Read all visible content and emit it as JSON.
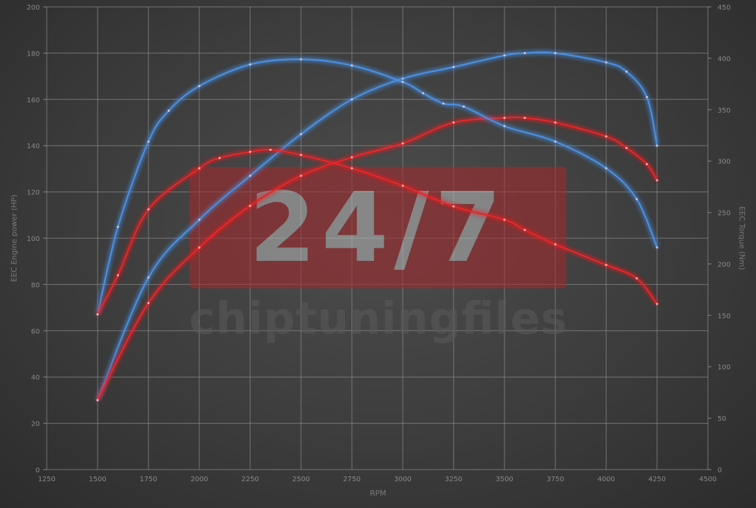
{
  "chart_data": {
    "type": "line",
    "xlabel": "RPM",
    "ylabel": "EEC Engine power (HP)",
    "y2label": "EEC Torque (Nm)",
    "xlim": [
      1250,
      4500
    ],
    "ylim": [
      0,
      200
    ],
    "y2lim": [
      0,
      450
    ],
    "xticks": [
      1250,
      1500,
      1750,
      2000,
      2250,
      2500,
      2750,
      3000,
      3250,
      3500,
      3750,
      4000,
      4250,
      4500
    ],
    "yticks": [
      0,
      20,
      40,
      60,
      80,
      100,
      120,
      140,
      160,
      180,
      200
    ],
    "y2ticks": [
      0,
      50,
      100,
      150,
      200,
      250,
      300,
      350,
      400,
      450
    ],
    "grid": true,
    "colors": {
      "tuned": "#4a90e2",
      "stock": "#e8262b"
    },
    "series": [
      {
        "axis": "left",
        "color": "tuned",
        "x": [
          1500,
          1750,
          2000,
          2250,
          2500,
          2750,
          3000,
          3250,
          3500,
          3600,
          3750,
          4000,
          4100,
          4200,
          4250
        ],
        "values": [
          30,
          83,
          108,
          127,
          145,
          160,
          169,
          174,
          179,
          180,
          180,
          176,
          172,
          161,
          140
        ]
      },
      {
        "axis": "left",
        "color": "stock",
        "x": [
          1500,
          1750,
          2000,
          2250,
          2500,
          2750,
          3000,
          3250,
          3500,
          3600,
          3750,
          4000,
          4100,
          4200,
          4250
        ],
        "values": [
          30,
          72,
          96,
          114,
          127,
          135,
          141,
          150,
          152,
          152,
          150,
          144,
          139,
          132,
          125
        ]
      },
      {
        "axis": "right",
        "color": "tuned",
        "x": [
          1500,
          1600,
          1750,
          1850,
          2000,
          2250,
          2500,
          2750,
          3000,
          3100,
          3200,
          3300,
          3500,
          3750,
          4000,
          4150,
          4250
        ],
        "values": [
          151,
          236,
          319,
          349,
          373,
          394,
          399,
          393,
          377,
          366,
          356,
          353,
          334,
          319,
          293,
          263,
          216
        ]
      },
      {
        "axis": "right",
        "color": "stock",
        "x": [
          1500,
          1600,
          1750,
          2000,
          2100,
          2250,
          2350,
          2500,
          2750,
          3000,
          3250,
          3500,
          3600,
          3750,
          4000,
          4150,
          4250
        ],
        "values": [
          151,
          189,
          253,
          293,
          303,
          309,
          311,
          306,
          293,
          276,
          256,
          243,
          233,
          219,
          199,
          186,
          161
        ]
      }
    ]
  },
  "watermark": {
    "logo": "24/7",
    "text": "chiptuningfiles"
  }
}
